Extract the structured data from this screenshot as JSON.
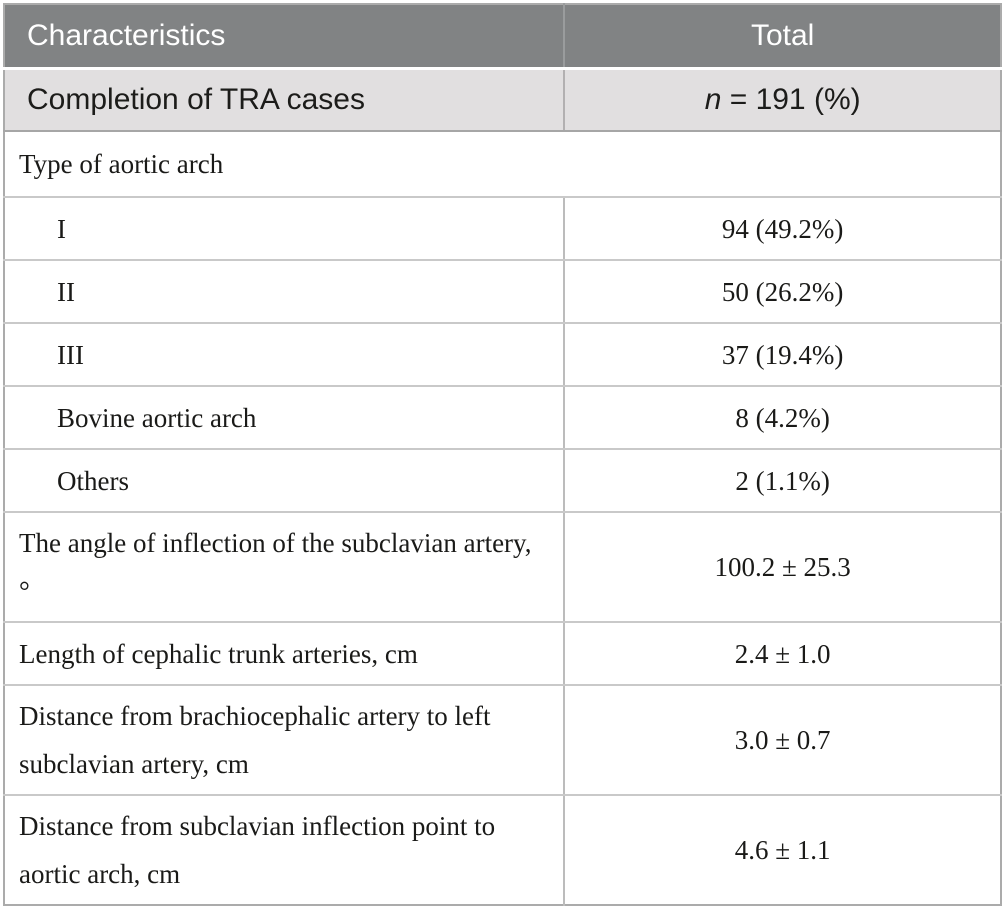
{
  "table": {
    "header": {
      "characteristics_label": "Characteristics",
      "total_label": "Total"
    },
    "subheader": {
      "label": "Completion of TRA cases",
      "value_prefix": "n",
      "value_suffix": " = 191 (%)"
    },
    "rows": [
      {
        "label": "Type of aortic arch",
        "value": "",
        "indent": false,
        "span": true
      },
      {
        "label": "I",
        "value": "94 (49.2%)",
        "indent": true,
        "span": false
      },
      {
        "label": "II",
        "value": "50 (26.2%)",
        "indent": true,
        "span": false
      },
      {
        "label": "III",
        "value": "37 (19.4%)",
        "indent": true,
        "span": false
      },
      {
        "label": "Bovine aortic arch",
        "value": "8 (4.2%)",
        "indent": true,
        "span": false
      },
      {
        "label": "Others",
        "value": "2 (1.1%)",
        "indent": true,
        "span": false
      },
      {
        "label": "The angle of inflection of the subclavian artery, °",
        "value": "100.2 ± 25.3",
        "indent": false,
        "span": false
      },
      {
        "label": "Length of cephalic trunk arteries, cm",
        "value": "2.4 ± 1.0",
        "indent": false,
        "span": false
      },
      {
        "label": "Distance from brachiocephalic artery to left subclavian artery, cm",
        "value": "3.0 ± 0.7",
        "indent": false,
        "span": false
      },
      {
        "label": "Distance from subclavian inflection point to aortic arch, cm",
        "value": "4.6 ± 1.1",
        "indent": false,
        "span": false
      }
    ],
    "colors": {
      "header_bg": "#818384",
      "header_text": "#ffffff",
      "subheader_bg": "#e1dfe0",
      "body_text": "#1a1a18",
      "row_border": "#c9c9c9",
      "outer_border": "#ababab"
    }
  }
}
